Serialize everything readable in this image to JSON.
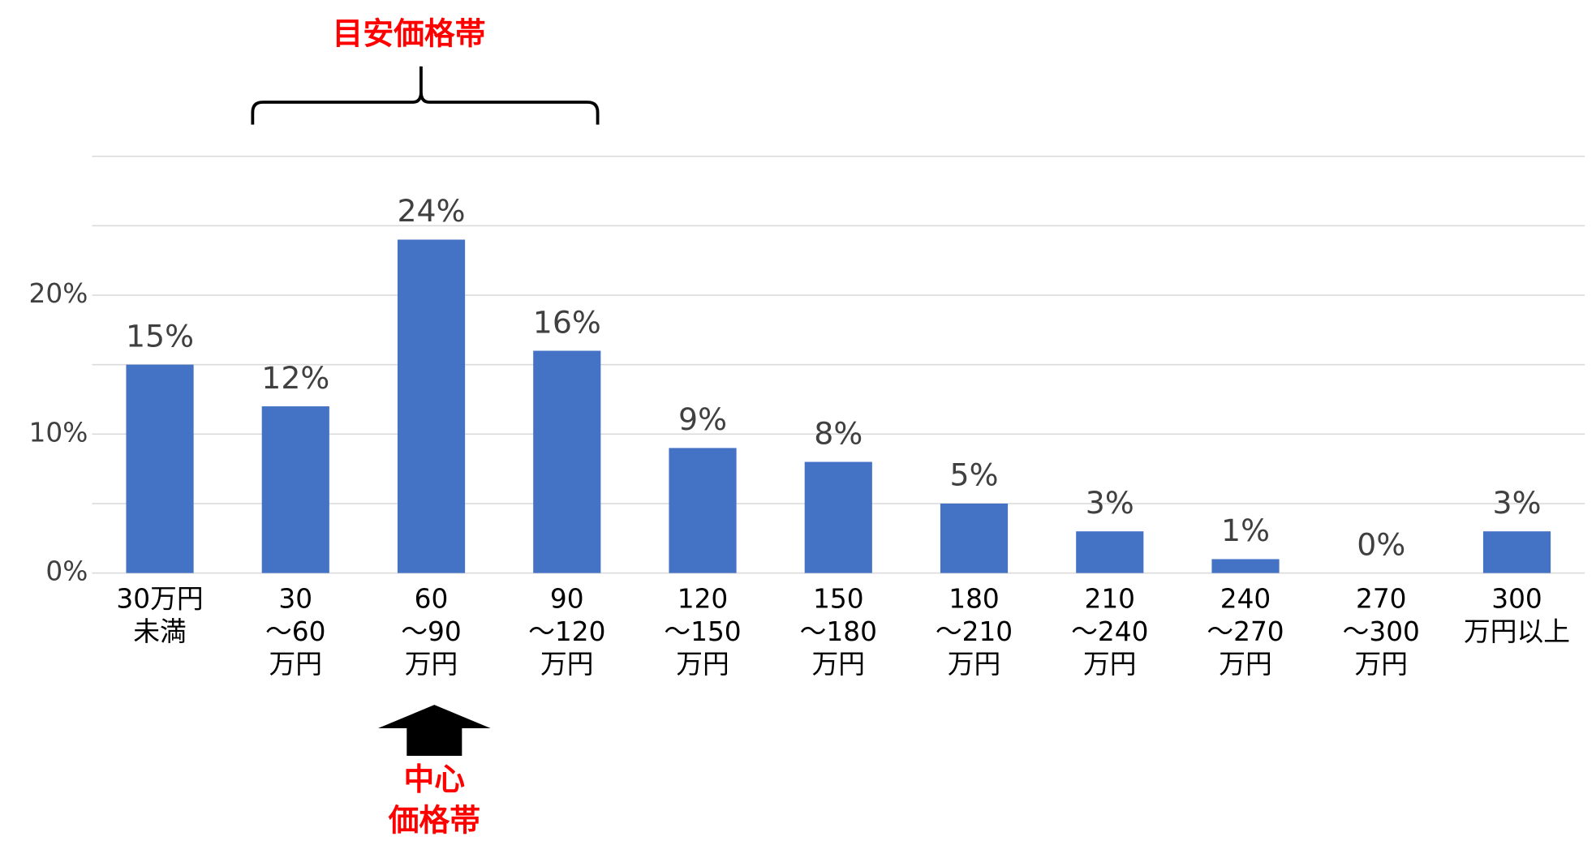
{
  "chart_data": {
    "type": "bar",
    "categories": [
      [
        "30万円",
        "未満"
      ],
      [
        "30",
        "～60",
        "万円"
      ],
      [
        "60",
        "～90",
        "万円"
      ],
      [
        "90",
        "～120",
        "万円"
      ],
      [
        "120",
        "～150",
        "万円"
      ],
      [
        "150",
        "～180",
        "万円"
      ],
      [
        "180",
        "～210",
        "万円"
      ],
      [
        "210",
        "～240",
        "万円"
      ],
      [
        "240",
        "～270",
        "万円"
      ],
      [
        "270",
        "～300",
        "万円"
      ],
      [
        "300",
        "万円以上"
      ]
    ],
    "values": [
      15,
      12,
      24,
      16,
      9,
      8,
      5,
      3,
      1,
      0,
      3
    ],
    "value_labels": [
      "15%",
      "12%",
      "24%",
      "16%",
      "9%",
      "8%",
      "5%",
      "3%",
      "1%",
      "0%",
      "3%"
    ],
    "color": "#4472c4",
    "ylim": [
      0,
      30
    ],
    "yticks": [
      {
        "value": 0,
        "label": "0%"
      },
      {
        "value": 10,
        "label": "10%"
      },
      {
        "value": 20,
        "label": "20%"
      }
    ],
    "ygrid": [
      0,
      5,
      10,
      15,
      20,
      25,
      30
    ],
    "grid": true,
    "annotations": {
      "range_label": "目安価格帯",
      "center_label": [
        "中心",
        "価格帯"
      ],
      "color": "#ff0000"
    }
  }
}
